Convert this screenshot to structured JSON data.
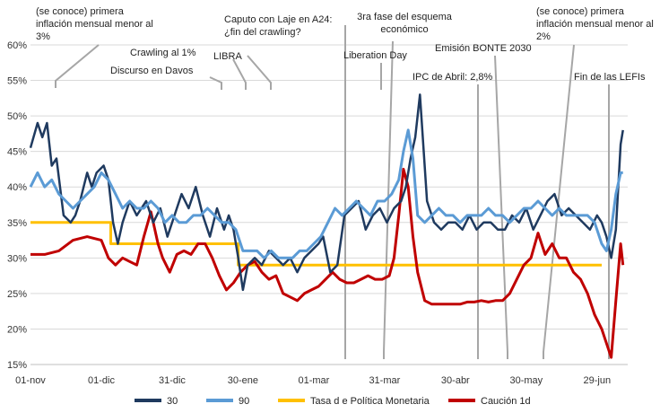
{
  "chart_data": {
    "type": "line",
    "title": "",
    "xlabel": "",
    "ylabel": "",
    "ylim": [
      15,
      60
    ],
    "y_ticks": [
      "15%",
      "20%",
      "25%",
      "30%",
      "35%",
      "40%",
      "45%",
      "50%",
      "55%",
      "60%"
    ],
    "x_ticks": [
      "01-nov",
      "01-dic",
      "31-dic",
      "30-ene",
      "01-mar",
      "31-mar",
      "30-abr",
      "30-may",
      "29-jun"
    ],
    "grid": "horizontal",
    "legend_position": "bottom",
    "x_start": "2024-11-01",
    "x_end": "2025-07-12",
    "series": [
      {
        "name": "30",
        "color": "#1f3a5f",
        "x": [
          "2024-11-01",
          "2024-11-04",
          "2024-11-06",
          "2024-11-08",
          "2024-11-10",
          "2024-11-12",
          "2024-11-15",
          "2024-11-18",
          "2024-11-20",
          "2024-11-22",
          "2024-11-25",
          "2024-11-27",
          "2024-11-29",
          "2024-12-02",
          "2024-12-04",
          "2024-12-06",
          "2024-12-08",
          "2024-12-10",
          "2024-12-13",
          "2024-12-16",
          "2024-12-18",
          "2024-12-20",
          "2024-12-23",
          "2024-12-26",
          "2024-12-29",
          "2025-01-01",
          "2025-01-04",
          "2025-01-07",
          "2025-01-10",
          "2025-01-13",
          "2025-01-16",
          "2025-01-19",
          "2025-01-22",
          "2025-01-24",
          "2025-01-26",
          "2025-01-28",
          "2025-01-30",
          "2025-02-01",
          "2025-02-04",
          "2025-02-07",
          "2025-02-10",
          "2025-02-13",
          "2025-02-16",
          "2025-02-19",
          "2025-02-22",
          "2025-02-25",
          "2025-02-28",
          "2025-03-03",
          "2025-03-05",
          "2025-03-08",
          "2025-03-11",
          "2025-03-14",
          "2025-03-17",
          "2025-03-20",
          "2025-03-23",
          "2025-03-26",
          "2025-03-29",
          "2025-04-01",
          "2025-04-04",
          "2025-04-07",
          "2025-04-09",
          "2025-04-11",
          "2025-04-13",
          "2025-04-15",
          "2025-04-18",
          "2025-04-21",
          "2025-04-24",
          "2025-04-27",
          "2025-04-30",
          "2025-05-03",
          "2025-05-06",
          "2025-05-09",
          "2025-05-12",
          "2025-05-15",
          "2025-05-18",
          "2025-05-21",
          "2025-05-24",
          "2025-05-27",
          "2025-05-30",
          "2025-06-02",
          "2025-06-05",
          "2025-06-08",
          "2025-06-11",
          "2025-06-14",
          "2025-06-17",
          "2025-06-20",
          "2025-06-23",
          "2025-06-26",
          "2025-06-29",
          "2025-07-01",
          "2025-07-03",
          "2025-07-05",
          "2025-07-07",
          "2025-07-09",
          "2025-07-10"
        ],
        "y": [
          45.5,
          49,
          47,
          49,
          43,
          44,
          36,
          35,
          36,
          38,
          42,
          40,
          42,
          43,
          41,
          35,
          32,
          35,
          38,
          36,
          37,
          38,
          35,
          37,
          33,
          36,
          39,
          37,
          40,
          36,
          33,
          37,
          34,
          36,
          34,
          30,
          25.5,
          29,
          30,
          29,
          31,
          30,
          29,
          30,
          28,
          30,
          31,
          32,
          33,
          28,
          29,
          36,
          37,
          38,
          34,
          36,
          37,
          35,
          37,
          38,
          40,
          44,
          47,
          53,
          38,
          35,
          34,
          35,
          35,
          34,
          36,
          34,
          35,
          35,
          34,
          34,
          36,
          35,
          37,
          34,
          36,
          38,
          39,
          36,
          37,
          36,
          35,
          34,
          36,
          35,
          33,
          30,
          34,
          46,
          48
        ]
      },
      {
        "name": "90",
        "color": "#5b9bd5",
        "x": [
          "2024-11-01",
          "2024-11-04",
          "2024-11-07",
          "2024-11-10",
          "2024-11-13",
          "2024-11-16",
          "2024-11-19",
          "2024-11-22",
          "2024-11-25",
          "2024-11-28",
          "2024-12-01",
          "2024-12-04",
          "2024-12-07",
          "2024-12-10",
          "2024-12-13",
          "2024-12-16",
          "2024-12-19",
          "2024-12-22",
          "2024-12-25",
          "2024-12-28",
          "2024-12-31",
          "2025-01-03",
          "2025-01-06",
          "2025-01-09",
          "2025-01-12",
          "2025-01-15",
          "2025-01-18",
          "2025-01-21",
          "2025-01-24",
          "2025-01-27",
          "2025-01-30",
          "2025-02-02",
          "2025-02-05",
          "2025-02-08",
          "2025-02-11",
          "2025-02-14",
          "2025-02-17",
          "2025-02-20",
          "2025-02-23",
          "2025-02-26",
          "2025-03-01",
          "2025-03-04",
          "2025-03-07",
          "2025-03-10",
          "2025-03-13",
          "2025-03-16",
          "2025-03-19",
          "2025-03-22",
          "2025-03-25",
          "2025-03-28",
          "2025-03-31",
          "2025-04-03",
          "2025-04-06",
          "2025-04-08",
          "2025-04-10",
          "2025-04-12",
          "2025-04-14",
          "2025-04-17",
          "2025-04-20",
          "2025-04-23",
          "2025-04-26",
          "2025-04-29",
          "2025-05-02",
          "2025-05-05",
          "2025-05-08",
          "2025-05-11",
          "2025-05-14",
          "2025-05-17",
          "2025-05-20",
          "2025-05-23",
          "2025-05-26",
          "2025-05-29",
          "2025-06-01",
          "2025-06-04",
          "2025-06-07",
          "2025-06-10",
          "2025-06-13",
          "2025-06-16",
          "2025-06-19",
          "2025-06-22",
          "2025-06-25",
          "2025-06-28",
          "2025-07-01",
          "2025-07-03",
          "2025-07-05",
          "2025-07-07",
          "2025-07-09",
          "2025-07-10"
        ],
        "y": [
          40,
          42,
          40,
          41,
          39,
          38,
          37,
          38,
          39,
          40,
          42,
          41,
          39,
          37,
          38,
          37,
          37,
          38,
          37,
          35,
          36,
          35,
          35,
          36,
          36,
          37,
          36,
          35,
          35,
          34,
          31,
          31,
          31,
          30,
          31,
          30,
          30,
          30,
          31,
          31,
          32,
          33,
          35,
          37,
          36,
          37,
          38,
          37,
          36,
          38,
          38,
          39,
          41,
          45,
          48,
          44,
          36,
          35,
          36,
          37,
          36,
          36,
          35,
          36,
          36,
          36,
          37,
          36,
          36,
          35,
          36,
          37,
          37,
          38,
          37,
          36,
          37,
          36,
          36,
          36,
          36,
          35,
          32,
          31,
          34,
          39,
          42,
          42
        ]
      },
      {
        "name": "Tasa d e Política Monetaria",
        "color": "#ffc000",
        "x": [
          "2024-11-01",
          "2024-12-05",
          "2024-12-05",
          "2025-01-28",
          "2025-01-28",
          "2025-07-01"
        ],
        "y": [
          35,
          35,
          32,
          32,
          29,
          29
        ]
      },
      {
        "name": "Caución 1d",
        "color": "#c00000",
        "x": [
          "2024-11-01",
          "2024-11-07",
          "2024-11-13",
          "2024-11-19",
          "2024-11-25",
          "2024-12-01",
          "2024-12-04",
          "2024-12-07",
          "2024-12-10",
          "2024-12-13",
          "2024-12-16",
          "2024-12-19",
          "2024-12-22",
          "2024-12-25",
          "2024-12-27",
          "2024-12-30",
          "2025-01-02",
          "2025-01-05",
          "2025-01-08",
          "2025-01-11",
          "2025-01-14",
          "2025-01-17",
          "2025-01-20",
          "2025-01-23",
          "2025-01-26",
          "2025-01-29",
          "2025-02-01",
          "2025-02-04",
          "2025-02-07",
          "2025-02-10",
          "2025-02-13",
          "2025-02-16",
          "2025-02-19",
          "2025-02-22",
          "2025-02-25",
          "2025-02-28",
          "2025-03-03",
          "2025-03-06",
          "2025-03-09",
          "2025-03-12",
          "2025-03-15",
          "2025-03-18",
          "2025-03-21",
          "2025-03-24",
          "2025-03-27",
          "2025-03-30",
          "2025-04-02",
          "2025-04-04",
          "2025-04-06",
          "2025-04-08",
          "2025-04-10",
          "2025-04-12",
          "2025-04-14",
          "2025-04-17",
          "2025-04-20",
          "2025-04-23",
          "2025-04-26",
          "2025-04-29",
          "2025-05-02",
          "2025-05-05",
          "2025-05-08",
          "2025-05-11",
          "2025-05-14",
          "2025-05-17",
          "2025-05-20",
          "2025-05-23",
          "2025-05-26",
          "2025-05-29",
          "2025-06-01",
          "2025-06-04",
          "2025-06-07",
          "2025-06-10",
          "2025-06-13",
          "2025-06-16",
          "2025-06-19",
          "2025-06-22",
          "2025-06-25",
          "2025-06-28",
          "2025-07-01",
          "2025-07-03",
          "2025-07-05",
          "2025-07-07",
          "2025-07-09",
          "2025-07-10"
        ],
        "y": [
          30.5,
          30.5,
          31,
          32.5,
          33,
          32.5,
          30,
          29,
          30,
          29.5,
          29,
          33,
          36.5,
          32,
          30,
          28,
          30.5,
          31,
          30.5,
          32,
          32,
          30,
          27.5,
          25.5,
          26.5,
          28,
          29,
          29.5,
          28,
          27,
          27.5,
          25,
          24.5,
          24,
          25,
          25.5,
          26,
          27,
          28,
          27,
          26.5,
          26.5,
          27,
          27.5,
          27,
          27,
          27.5,
          30,
          36,
          42.5,
          40,
          33,
          28,
          24,
          23.5,
          23.5,
          23.5,
          23.5,
          23.5,
          23.8,
          23.8,
          24,
          23.8,
          24,
          24,
          25,
          27,
          29,
          30,
          33.5,
          30.5,
          32,
          30,
          30,
          28,
          27,
          25,
          22,
          20,
          18,
          16,
          24,
          32,
          29
        ]
      }
    ],
    "annotations": [
      {
        "lines": [
          "(se conoce) primera",
          "inflación mensual menor al",
          "3%"
        ],
        "date": "2024-11-17"
      },
      {
        "lines": [
          "Crawling al 1%"
        ],
        "date": "2025-01-28"
      },
      {
        "lines": [
          "LIBRA"
        ],
        "date": "2025-02-14"
      },
      {
        "lines": [
          "Discurso en Davos"
        ],
        "date": "2025-01-23"
      },
      {
        "lines": [
          "Caputo con Laje en A24:",
          "¿fin del crawling?"
        ],
        "date": "2025-03-25"
      },
      {
        "lines": [
          "3ra fase del esquema",
          "económico"
        ],
        "date": "2025-04-09"
      },
      {
        "lines": [
          "Liberation Day"
        ],
        "date": "2025-04-07"
      },
      {
        "lines": [
          "IPC de Abril: 2,8%"
        ],
        "date": "2025-05-14"
      },
      {
        "lines": [
          "Emisión BONTE 2030"
        ],
        "date": "2025-05-21"
      },
      {
        "lines": [
          "(se conoce) primera",
          "inflación mensual menor al",
          "2%"
        ],
        "date": "2025-06-13"
      },
      {
        "lines": [
          "Fin de las LEFIs"
        ],
        "date": "2025-07-10"
      }
    ]
  }
}
